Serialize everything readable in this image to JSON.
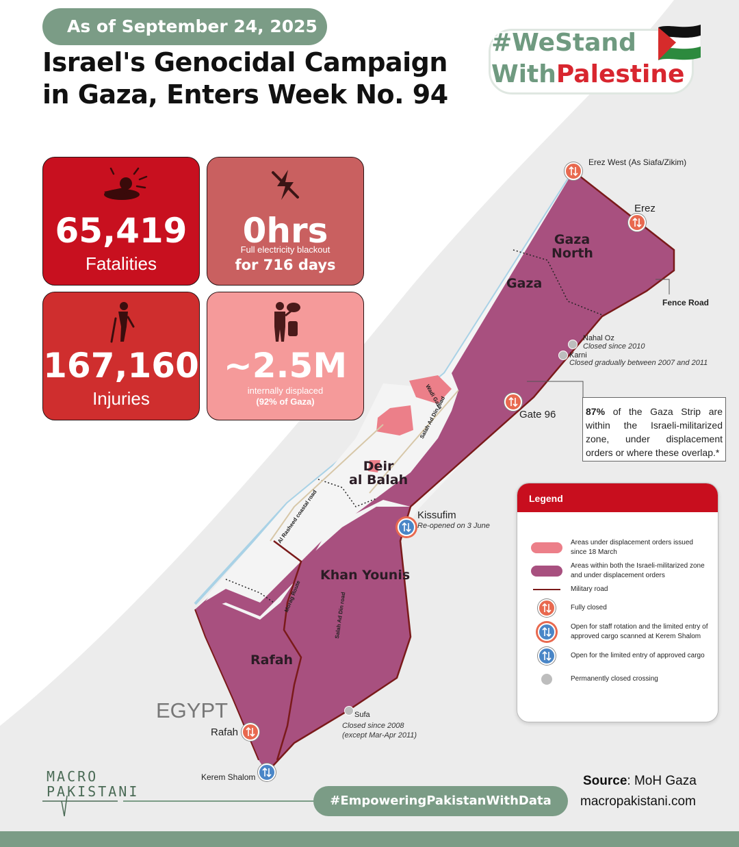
{
  "header": {
    "date": "As of September 24, 2025",
    "title_line1": "Israel's Genocidal Campaign",
    "title_line2": "in Gaza, Enters Week No. 94",
    "hashtag_line1": "#WeStand",
    "hashtag_with": "With",
    "hashtag_palestine": "Palestine"
  },
  "stats": [
    {
      "icon": "injured-person-icon",
      "value": "65,419",
      "label": "Fatalities",
      "color": "#c8101f"
    },
    {
      "icon": "power-off-icon",
      "value": "0hrs",
      "sub1": "Full electricity blackout",
      "sub2": "for 716 days",
      "color": "#c96060"
    },
    {
      "icon": "crutch-person-icon",
      "value": "167,160",
      "label": "Injuries",
      "color": "#cf2e2e"
    },
    {
      "icon": "displaced-person-icon",
      "value": "~2.5M",
      "sub1": "internally displaced",
      "sub2": "(92% of Gaza)",
      "color": "#f59a9a"
    }
  ],
  "map": {
    "regions": {
      "gaza_north": "Gaza North",
      "gaza": "Gaza",
      "deir": "Deir al Balah",
      "deir_l1": "Deir",
      "deir_l2": "al Balah",
      "khan_younis": "Khan Younis",
      "rafah": "Rafah",
      "egypt": "EGYPT"
    },
    "crossings": {
      "erez_west": "Erez West (As Siafa/Zikim)",
      "erez": "Erez",
      "fence_road": "Fence Road",
      "nahal_oz": "Nahal Oz",
      "nahal_oz_note": "Closed since 2010",
      "karni": "Karni",
      "karni_note": "Closed gradually between 2007 and 2011",
      "gate96": "Gate 96",
      "kissufim": "Kissufim",
      "kissufim_note": "Re-opened on 3 June",
      "sufa": "Sufa",
      "sufa_note1": "Closed since  2008",
      "sufa_note2": "(except Mar-Apr 2011)",
      "rafah": "Rafah",
      "kerem_shalom": "Kerem Shalom"
    },
    "roads": {
      "wadi_gaza": "Wadi Gaza",
      "salah_ad_din_north": "Salah Ad Din road",
      "al_rashid": "Al Rasheed coastal road",
      "morag": "Morag Route",
      "salah_ad_din_south": "Salah Ad Din road"
    },
    "callout": {
      "pct": "87%",
      "text": " of the Gaza Strip are within the Israeli-militarized zone, under displacement orders or where these overlap.*"
    },
    "colors": {
      "militarized": "#a8507f",
      "displacement": "#ec7f89",
      "military_road": "#7a1a1a",
      "closed": "#e8694f",
      "open": "#4a86c7",
      "sea": "#a9d2e6"
    }
  },
  "legend": {
    "title": "Legend",
    "items": [
      {
        "icon": "pink-area-swatch",
        "text": "Areas under displacement orders issued since 18 March"
      },
      {
        "icon": "purple-area-swatch",
        "text": "Areas within both the Israeli-militarized zone and under displacement orders"
      },
      {
        "icon": "military-road-line",
        "text": "Military road"
      },
      {
        "icon": "crossing-closed-icon",
        "text": "Fully closed"
      },
      {
        "icon": "crossing-staff-icon",
        "text": "Open for staff rotation and the limited entry of approved cargo scanned at Kerem Shalom"
      },
      {
        "icon": "crossing-open-icon",
        "text": "Open for the limited entry of approved cargo"
      },
      {
        "icon": "gray-dot-icon",
        "text": "Permanently closed crossing"
      }
    ]
  },
  "footer": {
    "logo_line1": "MACRO",
    "logo_line2": "PAKISTANI",
    "empowering": "#EmpoweringPakistanWithData",
    "source_label": "Source",
    "source_value": ": MoH Gaza",
    "website": "macropakistani.com"
  }
}
